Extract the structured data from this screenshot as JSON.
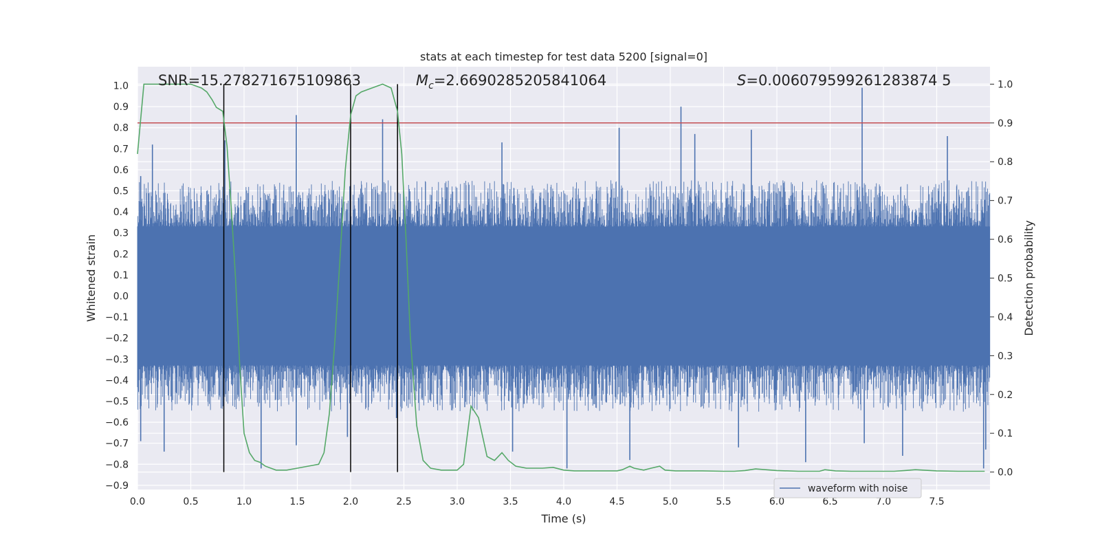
{
  "chart_data": {
    "type": "line",
    "title": "stats at each timestep for test data 5200 [signal=0]",
    "xlabel": "Time (s)",
    "ylabel": "Whitened strain",
    "y2label": "Detection probability",
    "xlim": [
      0,
      8.0
    ],
    "ylim": [
      -0.92,
      1.09
    ],
    "y2lim": [
      -0.045,
      1.045
    ],
    "xticks": [
      "0.0",
      "0.5",
      "1.0",
      "1.5",
      "2.0",
      "2.5",
      "3.0",
      "3.5",
      "4.0",
      "4.5",
      "5.0",
      "5.5",
      "6.0",
      "6.5",
      "7.0",
      "7.5"
    ],
    "yticks": [
      "1.0",
      "0.9",
      "0.8",
      "0.7",
      "0.6",
      "0.5",
      "0.4",
      "0.3",
      "0.2",
      "0.1",
      "0.0",
      "−0.1",
      "−0.2",
      "−0.3",
      "−0.4",
      "−0.5",
      "−0.6",
      "−0.7",
      "−0.8",
      "−0.9"
    ],
    "y2ticks": [
      "1.0",
      "0.9",
      "0.8",
      "0.7",
      "0.6",
      "0.5",
      "0.4",
      "0.3",
      "0.2",
      "0.1",
      "0.0"
    ],
    "grid": true,
    "legend_placement": "lower-right",
    "annotations": {
      "snr": "SNR=15.278271675109863",
      "mc_symbol": "M",
      "mc_sub": "c",
      "mc_value": "=2.6690285205841064",
      "s_symbol": "S",
      "s_value": "=0.006079599261283874 5"
    },
    "threshold": {
      "value": 0.9,
      "axis": "right",
      "color": "#c44e52"
    },
    "vlines": [
      0.81,
      2.0,
      2.44
    ],
    "series": [
      {
        "name": "waveform with noise",
        "axis": "left",
        "color": "#4c72b0",
        "style": "dense-noise",
        "envelope": {
          "x": [
            0.0,
            8.0
          ],
          "core_lo": -0.33,
          "core_hi": 0.33,
          "typ_lo": -0.55,
          "typ_hi": 0.55
        },
        "spikes": [
          {
            "x": 0.03,
            "y": 0.57
          },
          {
            "x": 0.03,
            "y": -0.69
          },
          {
            "x": 0.14,
            "y": 0.72
          },
          {
            "x": 0.25,
            "y": -0.74
          },
          {
            "x": 0.82,
            "y": 0.74
          },
          {
            "x": 0.83,
            "y": -0.41
          },
          {
            "x": 1.16,
            "y": -0.82
          },
          {
            "x": 1.49,
            "y": 0.86
          },
          {
            "x": 1.49,
            "y": -0.71
          },
          {
            "x": 1.97,
            "y": -0.67
          },
          {
            "x": 2.3,
            "y": 0.84
          },
          {
            "x": 2.43,
            "y": -0.58
          },
          {
            "x": 3.42,
            "y": 0.73
          },
          {
            "x": 3.52,
            "y": -0.74
          },
          {
            "x": 4.03,
            "y": -0.82
          },
          {
            "x": 4.52,
            "y": 0.8
          },
          {
            "x": 4.62,
            "y": -0.78
          },
          {
            "x": 5.1,
            "y": 0.9
          },
          {
            "x": 5.23,
            "y": 0.77
          },
          {
            "x": 5.64,
            "y": -0.72
          },
          {
            "x": 5.76,
            "y": 0.79
          },
          {
            "x": 6.27,
            "y": -0.79
          },
          {
            "x": 6.8,
            "y": 0.99
          },
          {
            "x": 6.82,
            "y": -0.7
          },
          {
            "x": 7.18,
            "y": -0.76
          },
          {
            "x": 7.6,
            "y": 0.76
          },
          {
            "x": 7.94,
            "y": -0.82
          },
          {
            "x": 7.96,
            "y": -0.73
          }
        ]
      },
      {
        "name": "",
        "axis": "right",
        "color": "#55a868",
        "x": [
          0.0,
          0.06,
          0.12,
          0.2,
          0.35,
          0.5,
          0.6,
          0.65,
          0.7,
          0.74,
          0.8,
          0.84,
          0.88,
          0.92,
          0.96,
          1.0,
          1.05,
          1.1,
          1.15,
          1.2,
          1.3,
          1.4,
          1.5,
          1.6,
          1.7,
          1.75,
          1.8,
          1.85,
          1.9,
          1.95,
          2.0,
          2.05,
          2.1,
          2.2,
          2.3,
          2.38,
          2.44,
          2.48,
          2.52,
          2.56,
          2.62,
          2.68,
          2.75,
          2.85,
          3.0,
          3.06,
          3.13,
          3.2,
          3.28,
          3.35,
          3.42,
          3.48,
          3.55,
          3.65,
          3.8,
          3.9,
          4.0,
          4.1,
          4.2,
          4.4,
          4.5,
          4.55,
          4.62,
          4.66,
          4.75,
          4.82,
          4.9,
          4.95,
          5.05,
          5.15,
          5.3,
          5.5,
          5.6,
          5.7,
          5.8,
          6.0,
          6.2,
          6.4,
          6.45,
          6.55,
          6.7,
          6.9,
          7.1,
          7.2,
          7.3,
          7.5,
          7.7,
          7.95
        ],
        "y": [
          0.82,
          1.0,
          1.0,
          1.0,
          1.0,
          1.0,
          0.99,
          0.98,
          0.96,
          0.94,
          0.93,
          0.84,
          0.68,
          0.5,
          0.27,
          0.1,
          0.05,
          0.03,
          0.025,
          0.015,
          0.005,
          0.005,
          0.01,
          0.015,
          0.02,
          0.05,
          0.15,
          0.33,
          0.55,
          0.78,
          0.92,
          0.97,
          0.98,
          0.99,
          1.0,
          0.99,
          0.93,
          0.82,
          0.6,
          0.35,
          0.12,
          0.03,
          0.01,
          0.005,
          0.005,
          0.02,
          0.17,
          0.14,
          0.04,
          0.03,
          0.05,
          0.03,
          0.015,
          0.01,
          0.01,
          0.012,
          0.005,
          0.003,
          0.003,
          0.003,
          0.003,
          0.006,
          0.015,
          0.01,
          0.005,
          0.01,
          0.015,
          0.005,
          0.003,
          0.003,
          0.003,
          0.002,
          0.002,
          0.004,
          0.008,
          0.004,
          0.002,
          0.002,
          0.006,
          0.003,
          0.002,
          0.002,
          0.002,
          0.004,
          0.006,
          0.003,
          0.002,
          0.002
        ]
      }
    ]
  }
}
